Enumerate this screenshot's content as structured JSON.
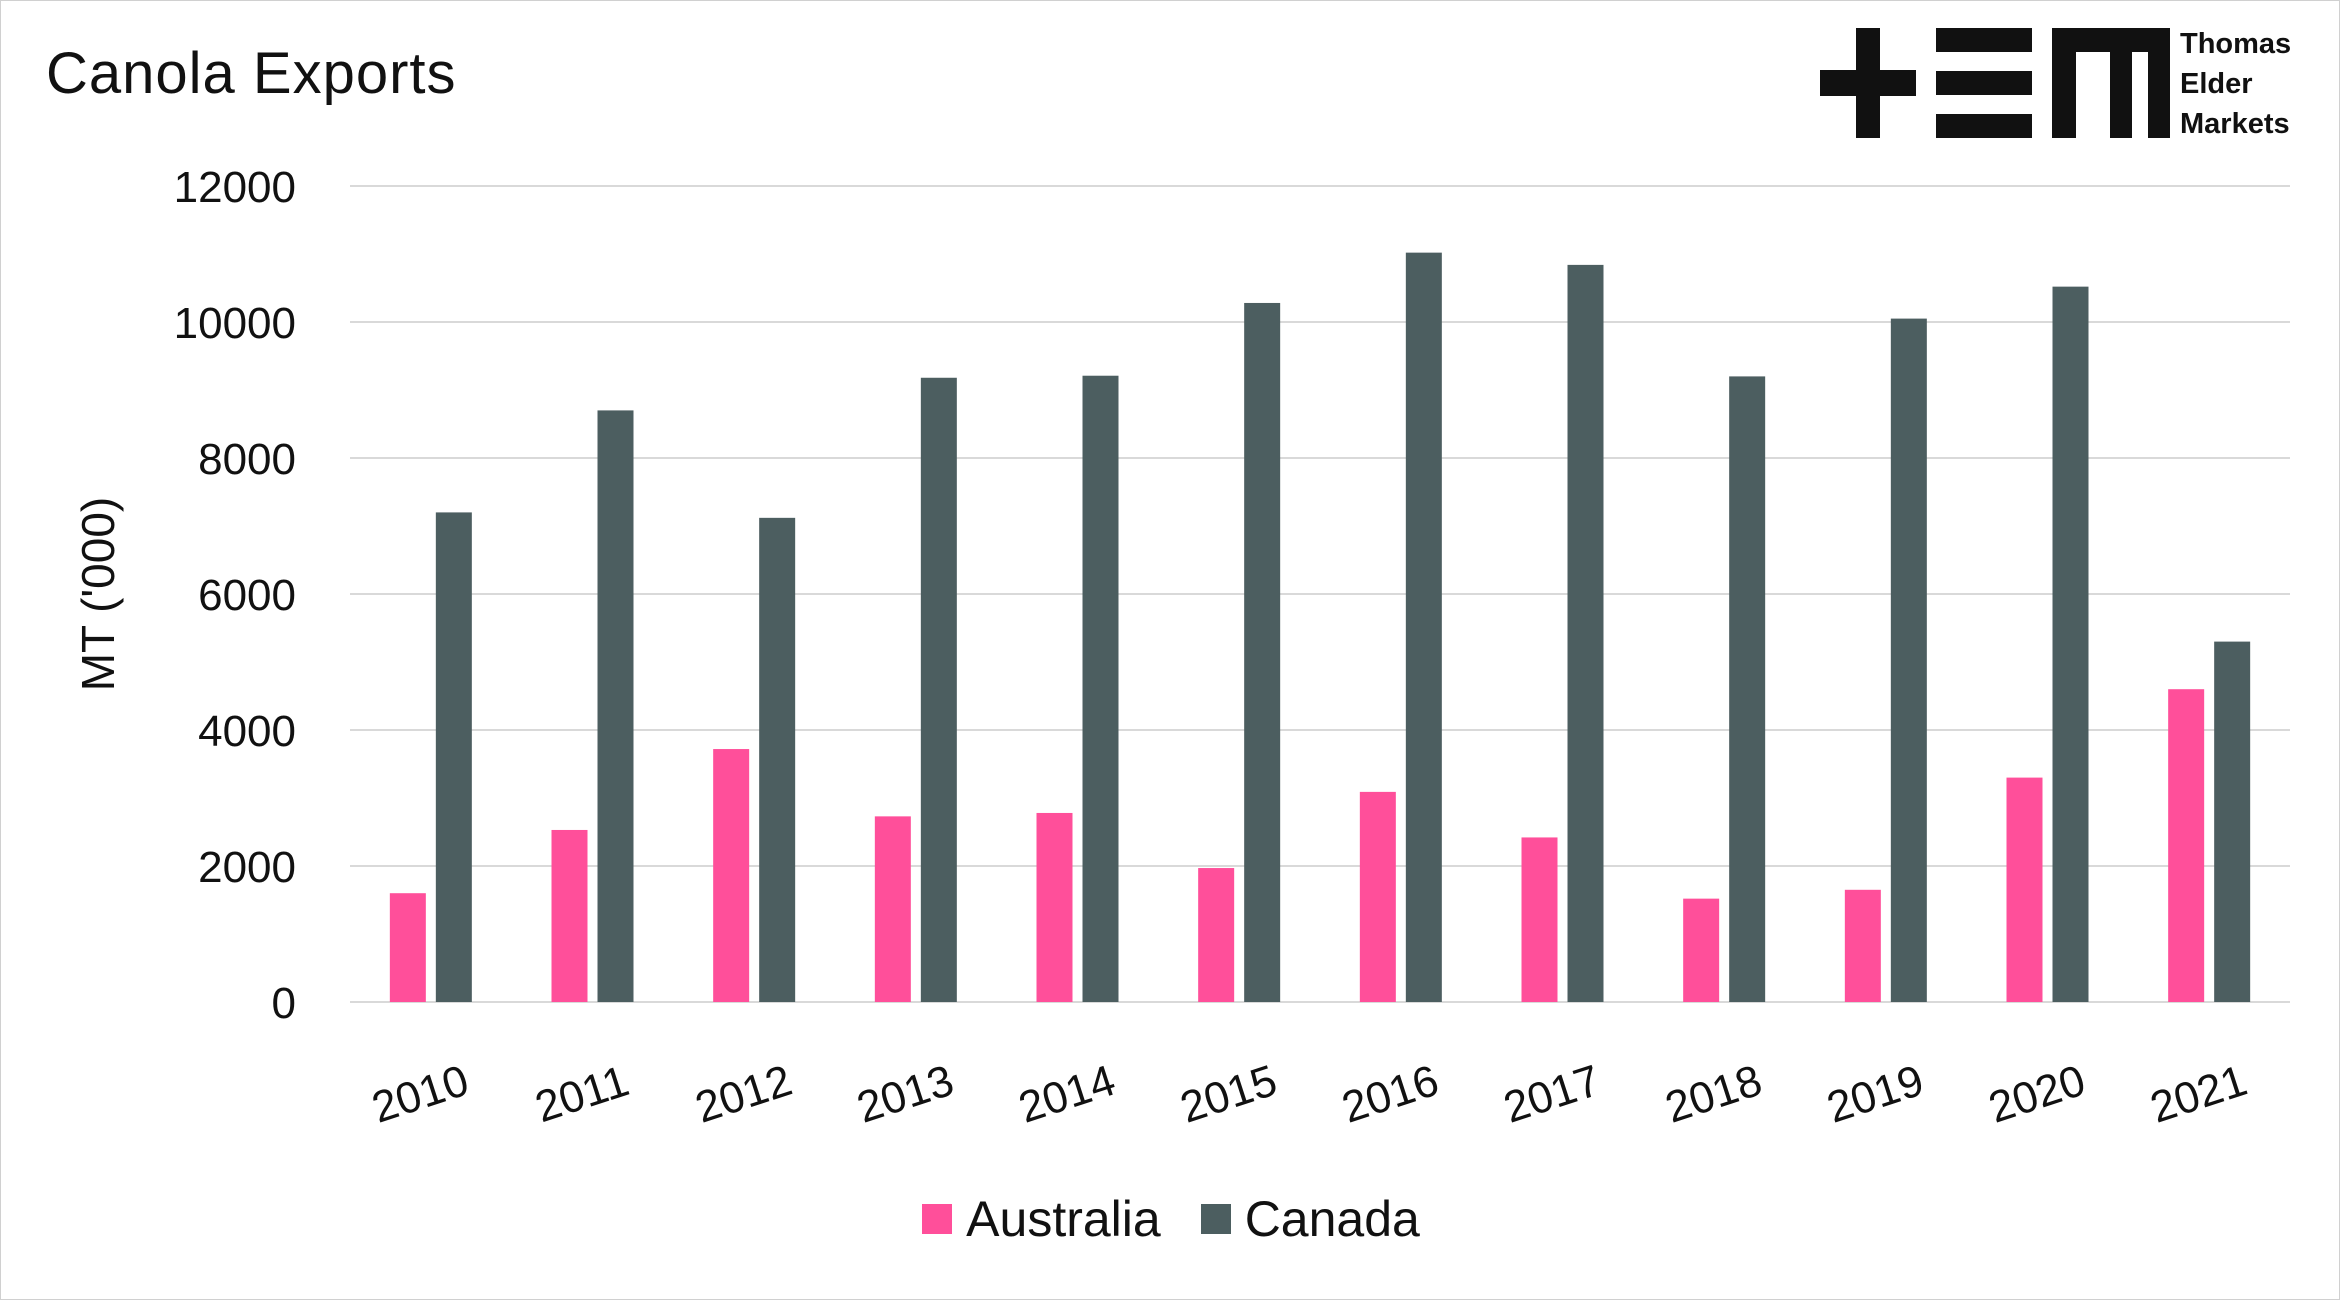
{
  "logo": {
    "mark": "TEM",
    "lines": [
      "Thomas",
      "Elder",
      "Markets"
    ]
  },
  "colors": {
    "australia": "#ff4f9a",
    "canada": "#4c5e60",
    "grid": "#d9d9d9"
  },
  "chart_data": {
    "type": "bar",
    "title": "Canola Exports",
    "xlabel": "",
    "ylabel": "MT ('000)",
    "ylim": [
      0,
      12000
    ],
    "yticks": [
      0,
      2000,
      4000,
      6000,
      8000,
      10000,
      12000
    ],
    "grid": true,
    "legend_position": "bottom",
    "categories": [
      "2010",
      "2011",
      "2012",
      "2013",
      "2014",
      "2015",
      "2016",
      "2017",
      "2018",
      "2019",
      "2020",
      "2021"
    ],
    "series": [
      {
        "name": "Australia",
        "color": "#ff4f9a",
        "values": [
          1600,
          2530,
          3720,
          2730,
          2780,
          1970,
          3090,
          2420,
          1520,
          1650,
          3300,
          4600
        ]
      },
      {
        "name": "Canada",
        "color": "#4c5e60",
        "values": [
          7200,
          8700,
          7120,
          9180,
          9210,
          10280,
          11020,
          10840,
          9200,
          10050,
          10520,
          5300
        ]
      }
    ]
  }
}
